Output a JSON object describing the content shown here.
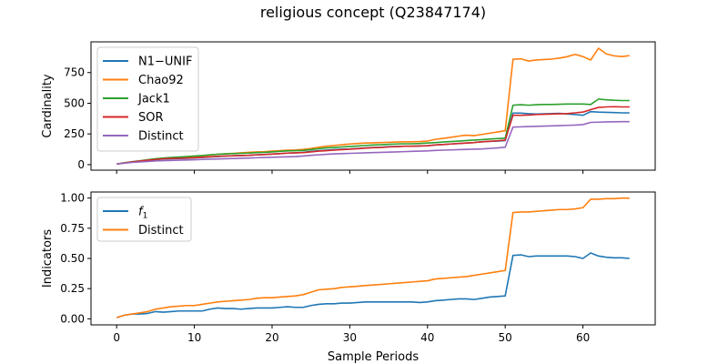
{
  "figure": {
    "title": "religious concept (Q23847174)",
    "xlabel": "Sample Periods"
  },
  "chart_data": [
    {
      "type": "line",
      "ylabel": "Cardinality",
      "xlim": [
        -3.3,
        69.3
      ],
      "ylim": [
        -45,
        1000
      ],
      "xticks": [
        0,
        10,
        20,
        30,
        40,
        50,
        60
      ],
      "yticks": [
        0,
        250,
        500,
        750
      ],
      "show_xtick_labels": false,
      "legend": "upper left",
      "grid": false,
      "series": [
        {
          "name": "N1−UNIF",
          "color": "#1f77b4",
          "values": [
            5,
            15,
            22,
            28,
            34,
            40,
            46,
            48,
            50,
            52,
            55,
            58,
            62,
            66,
            70,
            72,
            74,
            76,
            80,
            82,
            86,
            90,
            94,
            96,
            100,
            108,
            114,
            118,
            122,
            126,
            128,
            132,
            136,
            140,
            142,
            146,
            148,
            150,
            150,
            152,
            155,
            160,
            164,
            168,
            172,
            176,
            180,
            186,
            190,
            192,
            196,
            420,
            420,
            415,
            412,
            414,
            416,
            418,
            412,
            408,
            402,
            432,
            428,
            426,
            424,
            422,
            422
          ]
        },
        {
          "name": "Chao92",
          "color": "#ff7f0e",
          "values": [
            5,
            14,
            22,
            30,
            38,
            46,
            50,
            54,
            58,
            62,
            66,
            72,
            78,
            84,
            88,
            92,
            96,
            100,
            104,
            106,
            110,
            114,
            118,
            120,
            124,
            132,
            142,
            150,
            156,
            162,
            168,
            172,
            176,
            178,
            180,
            182,
            184,
            186,
            186,
            188,
            192,
            206,
            214,
            222,
            232,
            240,
            236,
            246,
            256,
            266,
            276,
            858,
            862,
            844,
            852,
            856,
            860,
            868,
            880,
            898,
            880,
            852,
            948,
            902,
            886,
            880,
            888
          ]
        },
        {
          "name": "Jack1",
          "color": "#2ca02c",
          "values": [
            5,
            15,
            24,
            32,
            40,
            48,
            54,
            58,
            62,
            66,
            70,
            74,
            80,
            84,
            88,
            90,
            92,
            94,
            98,
            100,
            104,
            108,
            112,
            114,
            116,
            122,
            130,
            136,
            140,
            144,
            148,
            152,
            156,
            160,
            162,
            166,
            168,
            170,
            170,
            172,
            176,
            180,
            184,
            188,
            192,
            196,
            200,
            204,
            208,
            212,
            216,
            484,
            488,
            484,
            488,
            490,
            490,
            492,
            494,
            494,
            494,
            490,
            534,
            528,
            524,
            522,
            522
          ]
        },
        {
          "name": "SOR",
          "color": "#d62728",
          "values": [
            5,
            14,
            22,
            30,
            36,
            42,
            48,
            50,
            52,
            54,
            56,
            60,
            64,
            68,
            70,
            72,
            74,
            76,
            80,
            82,
            86,
            90,
            94,
            96,
            98,
            104,
            110,
            114,
            118,
            122,
            126,
            130,
            134,
            138,
            140,
            144,
            146,
            150,
            150,
            152,
            154,
            160,
            164,
            168,
            172,
            176,
            180,
            186,
            190,
            194,
            200,
            402,
            402,
            404,
            408,
            410,
            412,
            414,
            416,
            422,
            428,
            448,
            466,
            470,
            472,
            470,
            470
          ]
        },
        {
          "name": "Distinct",
          "color": "#9467bd",
          "values": [
            5,
            12,
            18,
            22,
            26,
            30,
            32,
            34,
            36,
            38,
            40,
            42,
            44,
            46,
            48,
            50,
            52,
            54,
            56,
            58,
            60,
            62,
            64,
            66,
            70,
            76,
            80,
            84,
            88,
            90,
            92,
            94,
            96,
            98,
            100,
            102,
            104,
            106,
            108,
            110,
            112,
            116,
            118,
            120,
            122,
            124,
            126,
            128,
            132,
            136,
            142,
            306,
            308,
            310,
            312,
            314,
            316,
            318,
            320,
            322,
            326,
            344,
            346,
            348,
            349,
            350,
            350
          ]
        }
      ]
    },
    {
      "type": "line",
      "ylabel": "Indicators",
      "xlim": [
        -3.3,
        69.3
      ],
      "ylim": [
        -0.05,
        1.05
      ],
      "xticks": [
        0,
        10,
        20,
        30,
        40,
        50,
        60
      ],
      "yticks": [
        0.0,
        0.25,
        0.5,
        0.75,
        1.0
      ],
      "ytick_labels": [
        "0.00",
        "0.25",
        "0.50",
        "0.75",
        "1.00"
      ],
      "show_xtick_labels": true,
      "legend": "upper left",
      "grid": false,
      "series": [
        {
          "name": "f1",
          "label_main": "f",
          "label_sub": "1",
          "color": "#1f77b4",
          "values": [
            0.01,
            0.03,
            0.04,
            0.04,
            0.045,
            0.06,
            0.055,
            0.06,
            0.065,
            0.065,
            0.065,
            0.065,
            0.08,
            0.09,
            0.085,
            0.085,
            0.08,
            0.085,
            0.09,
            0.09,
            0.09,
            0.095,
            0.1,
            0.095,
            0.095,
            0.11,
            0.12,
            0.125,
            0.125,
            0.13,
            0.13,
            0.135,
            0.14,
            0.14,
            0.14,
            0.14,
            0.14,
            0.14,
            0.14,
            0.135,
            0.14,
            0.15,
            0.155,
            0.16,
            0.165,
            0.165,
            0.16,
            0.17,
            0.18,
            0.185,
            0.19,
            0.525,
            0.53,
            0.515,
            0.52,
            0.52,
            0.52,
            0.52,
            0.52,
            0.515,
            0.5,
            0.545,
            0.52,
            0.51,
            0.505,
            0.505,
            0.5
          ]
        },
        {
          "name": "Distinct",
          "color": "#ff7f0e",
          "values": [
            0.01,
            0.03,
            0.04,
            0.05,
            0.06,
            0.08,
            0.09,
            0.1,
            0.105,
            0.11,
            0.11,
            0.12,
            0.13,
            0.14,
            0.145,
            0.15,
            0.155,
            0.16,
            0.17,
            0.175,
            0.175,
            0.18,
            0.185,
            0.19,
            0.2,
            0.22,
            0.24,
            0.245,
            0.25,
            0.26,
            0.265,
            0.27,
            0.275,
            0.28,
            0.285,
            0.29,
            0.295,
            0.3,
            0.305,
            0.31,
            0.315,
            0.33,
            0.335,
            0.34,
            0.345,
            0.35,
            0.36,
            0.37,
            0.38,
            0.39,
            0.4,
            0.88,
            0.885,
            0.885,
            0.89,
            0.895,
            0.9,
            0.905,
            0.905,
            0.91,
            0.92,
            0.99,
            0.99,
            0.995,
            0.995,
            1.0,
            1.0
          ]
        }
      ]
    }
  ]
}
